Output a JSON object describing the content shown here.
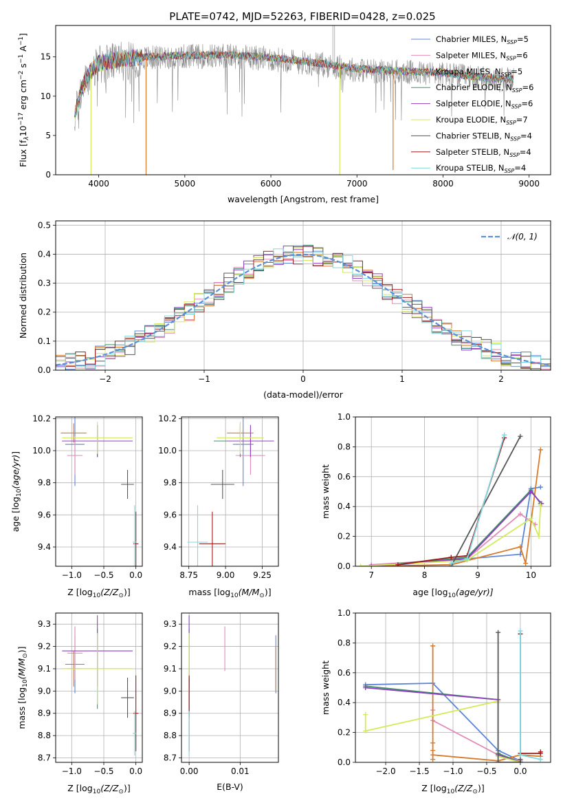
{
  "figure": {
    "title": "PLATE=0742, MJD=52263, FIBERID=0428, z=0.025"
  },
  "colors": {
    "Chabrier MILES": "#5b84d8",
    "Salpeter MILES": "#e08bb8",
    "Kroupa MILES": "#d97a2b",
    "Chabrier ELODIE": "#3e8f6a",
    "Salpeter ELODIE": "#8e3fbd",
    "Kroupa ELODIE": "#d4ea5a",
    "Chabrier STELIB": "#555555",
    "Salpeter STELIB": "#9b1b1b",
    "Kroupa STELIB": "#7fd8e0",
    "data": "#888888",
    "gaussian": "#5b8fd6"
  },
  "chart_data": [
    {
      "id": "spectrum",
      "type": "line",
      "xlabel": "wavelength [Angstrom, rest frame]",
      "ylabel": "Flux [f$_\\lambda$10$^{-17}$ erg cm$^{-2}$ s$^{-1}$ A$^{-1}$]",
      "xlim": [
        3500,
        9250
      ],
      "ylim": [
        0,
        19
      ],
      "xticks": [
        4000,
        5000,
        6000,
        7000,
        8000,
        9000
      ],
      "yticks": [
        0,
        5,
        10,
        15
      ],
      "legend_position": "top-right",
      "legend": [
        {
          "name": "Chabrier MILES",
          "main": "Chabrier MILES, N",
          "sub": "SSP",
          "tail": "=5"
        },
        {
          "name": "Salpeter MILES",
          "main": "Salpeter MILES, N",
          "sub": "SSP",
          "tail": "=6"
        },
        {
          "name": "Kroupa MILES",
          "main": "Kroupa MILES, N",
          "sub": "SSP",
          "tail": "=5"
        },
        {
          "name": "Chabrier ELODIE",
          "main": "Chabrier ELODIE, N",
          "sub": "SSP",
          "tail": "=6"
        },
        {
          "name": "Salpeter ELODIE",
          "main": "Salpeter ELODIE, N",
          "sub": "SSP",
          "tail": "=6"
        },
        {
          "name": "Kroupa ELODIE",
          "main": "Kroupa ELODIE, N",
          "sub": "SSP",
          "tail": "=7"
        },
        {
          "name": "Chabrier STELIB",
          "main": "Chabrier STELIB, N",
          "sub": "SSP",
          "tail": "=4"
        },
        {
          "name": "Salpeter STELIB",
          "main": "Salpeter STELIB, N",
          "sub": "SSP",
          "tail": "=4"
        },
        {
          "name": "Kroupa STELIB",
          "main": "Kroupa STELIB, N",
          "sub": "SSP",
          "tail": "=4"
        }
      ],
      "continuum": [
        [
          3720,
          7.5
        ],
        [
          3800,
          11.0
        ],
        [
          3900,
          13.0
        ],
        [
          4000,
          14.2
        ],
        [
          4200,
          14.6
        ],
        [
          4500,
          15.0
        ],
        [
          5000,
          15.2
        ],
        [
          5500,
          15.3
        ],
        [
          6000,
          14.9
        ],
        [
          6500,
          14.3
        ],
        [
          7000,
          13.5
        ],
        [
          7500,
          13.2
        ],
        [
          8000,
          13.0
        ],
        [
          8500,
          12.3
        ],
        [
          8820,
          12.2
        ]
      ],
      "noise_amplitude_data": 2.5,
      "noise_amplitude_models": 1.0,
      "model_drops": [
        {
          "x": 3910,
          "y": 0.0,
          "model": "Kroupa ELODIE"
        },
        {
          "x": 4550,
          "y": 0.0,
          "model": "Kroupa MILES"
        },
        {
          "x": 6800,
          "y": 0.0,
          "model": "Kroupa ELODIE"
        },
        {
          "x": 7420,
          "y": 0.6,
          "model": "Kroupa MILES"
        }
      ],
      "data_spikes": [
        {
          "x": 6720,
          "y": 19.0
        },
        {
          "x": 6740,
          "y": 19.0
        }
      ]
    },
    {
      "id": "residuals",
      "type": "line",
      "xlabel": "(data-model)/error",
      "ylabel": "Normed distribution",
      "xlim": [
        -2.5,
        2.5
      ],
      "ylim": [
        0,
        0.515
      ],
      "xticks": [
        -2,
        -1,
        0,
        1,
        2
      ],
      "yticks": [
        0.0,
        0.1,
        0.2,
        0.3,
        0.4,
        0.5
      ],
      "grid": true,
      "legend_position": "top-right",
      "legend_label": "𝒩(0, 1)",
      "bin_width": 0.1,
      "bin_start": -2.5,
      "histogram_scatter": 0.035
    },
    {
      "id": "age_vs_Z",
      "type": "scatter",
      "xlabel_main": "Z [log",
      "xlabel_sub": "10",
      "xlabel_tail": "(Z/Z",
      "xlabel_end": ")]",
      "ylabel": "age  [log10(age/yr)]",
      "xlim": [
        -1.25,
        0.1
      ],
      "ylim": [
        9.28,
        10.21
      ],
      "xticks": [
        -1.0,
        -0.5,
        0.0
      ],
      "yticks": [
        9.4,
        9.6,
        9.8,
        10.0,
        10.2
      ],
      "grid": true,
      "points": [
        {
          "model": "Chabrier MILES",
          "x": -0.95,
          "xerr": 0.15,
          "y": 10.04,
          "yerr": 0.26
        },
        {
          "model": "Salpeter MILES",
          "x": -0.95,
          "xerr": 0.12,
          "y": 9.97,
          "yerr": 0.12
        },
        {
          "model": "Kroupa MILES",
          "x": -0.97,
          "xerr": 0.2,
          "y": 10.11,
          "yerr": 0.06
        },
        {
          "model": "Chabrier ELODIE",
          "x": -0.6,
          "xerr": 0.55,
          "y": 10.06,
          "yerr": 0.1
        },
        {
          "model": "Salpeter ELODIE",
          "x": -0.6,
          "xerr": 0.55,
          "y": 10.06,
          "yerr": 0.1
        },
        {
          "model": "Kroupa ELODIE",
          "x": -0.6,
          "xerr": 0.55,
          "y": 10.08,
          "yerr": 0.1
        },
        {
          "model": "Chabrier STELIB",
          "x": -0.13,
          "xerr": 0.1,
          "y": 9.79,
          "yerr": 0.09
        },
        {
          "model": "Salpeter STELIB",
          "x": 0.0,
          "xerr": 0.04,
          "y": 9.42,
          "yerr": 0.2
        },
        {
          "model": "Kroupa STELIB",
          "x": -0.02,
          "xerr": 0.03,
          "y": 9.43,
          "yerr": 0.23
        }
      ]
    },
    {
      "id": "age_vs_mass",
      "type": "scatter",
      "xlabel_main": "mass [log",
      "xlabel_sub": "10",
      "xlabel_tail": "(M/M",
      "xlabel_end": ")]",
      "ylabel": "",
      "xlim": [
        8.7,
        9.36
      ],
      "ylim": [
        9.28,
        10.21
      ],
      "xticks": [
        8.75,
        9.0,
        9.25
      ],
      "yticks": [
        9.4,
        9.6,
        9.8,
        10.0,
        10.2
      ],
      "grid": true,
      "points": [
        {
          "model": "Chabrier MILES",
          "x": 9.12,
          "xerr": 0.07,
          "y": 10.04,
          "yerr": 0.26
        },
        {
          "model": "Salpeter MILES",
          "x": 9.17,
          "xerr": 0.1,
          "y": 9.97,
          "yerr": 0.12
        },
        {
          "model": "Kroupa MILES",
          "x": 9.1,
          "xerr": 0.09,
          "y": 10.11,
          "yerr": 0.06
        },
        {
          "model": "Chabrier ELODIE",
          "x": 9.1,
          "xerr": 0.18,
          "y": 10.06,
          "yerr": 0.1
        },
        {
          "model": "Salpeter ELODIE",
          "x": 9.17,
          "xerr": 0.16,
          "y": 10.06,
          "yerr": 0.1
        },
        {
          "model": "Kroupa ELODIE",
          "x": 9.1,
          "xerr": 0.16,
          "y": 10.08,
          "yerr": 0.1
        },
        {
          "model": "Chabrier STELIB",
          "x": 8.98,
          "xerr": 0.08,
          "y": 9.79,
          "yerr": 0.09
        },
        {
          "model": "Salpeter STELIB",
          "x": 8.91,
          "xerr": 0.09,
          "y": 9.42,
          "yerr": 0.2
        },
        {
          "model": "Kroupa STELIB",
          "x": 8.81,
          "xerr": 0.07,
          "y": 9.43,
          "yerr": 0.23
        }
      ]
    },
    {
      "id": "weight_vs_age",
      "type": "line",
      "xlabel_main": "age  [log",
      "xlabel_sub": "10",
      "xlabel_tail": "(age/yr)]",
      "ylabel": "mass weight",
      "xlim": [
        6.7,
        10.37
      ],
      "ylim": [
        0,
        1.0
      ],
      "xticks": [
        7,
        8,
        9,
        10
      ],
      "yticks": [
        0.0,
        0.2,
        0.4,
        0.6,
        0.8,
        1.0
      ],
      "grid": true,
      "series": [
        {
          "model": "Chabrier MILES",
          "x": [
            7.5,
            9.8,
            10.0,
            10.18
          ],
          "y": [
            0.01,
            0.08,
            0.52,
            0.53
          ]
        },
        {
          "model": "Salpeter MILES",
          "x": [
            7.0,
            8.8,
            9.8,
            10.08
          ],
          "y": [
            0.01,
            0.05,
            0.35,
            0.28
          ]
        },
        {
          "model": "Kroupa MILES",
          "x": [
            7.0,
            8.5,
            9.8,
            9.9,
            10.18
          ],
          "y": [
            0.0,
            0.01,
            0.13,
            0.02,
            0.78
          ]
        },
        {
          "model": "Chabrier ELODIE",
          "x": [
            7.0,
            8.8,
            10.0,
            10.18
          ],
          "y": [
            0.0,
            0.06,
            0.51,
            0.42
          ]
        },
        {
          "model": "Salpeter ELODIE",
          "x": [
            7.0,
            8.8,
            10.0,
            10.2
          ],
          "y": [
            0.0,
            0.05,
            0.5,
            0.42
          ]
        },
        {
          "model": "Kroupa ELODIE",
          "x": [
            6.8,
            8.8,
            10.0,
            10.15,
            10.18
          ],
          "y": [
            0.0,
            0.04,
            0.32,
            0.2,
            0.41
          ]
        },
        {
          "model": "Chabrier STELIB",
          "x": [
            8.5,
            9.8
          ],
          "y": [
            0.0,
            0.87
          ]
        },
        {
          "model": "Salpeter STELIB",
          "x": [
            7.5,
            8.5,
            8.8,
            9.5
          ],
          "y": [
            0.01,
            0.06,
            0.07,
            0.86
          ]
        },
        {
          "model": "Kroupa STELIB",
          "x": [
            8.5,
            8.8,
            9.5
          ],
          "y": [
            0.02,
            0.05,
            0.88
          ]
        }
      ]
    },
    {
      "id": "mass_vs_Z",
      "type": "scatter",
      "xlabel_main": "Z [log",
      "xlabel_sub": "10",
      "xlabel_tail": "(Z/Z",
      "xlabel_end": ")]",
      "ylabel": "mass [log10(M/M⊙)]",
      "xlim": [
        -1.25,
        0.1
      ],
      "ylim": [
        8.68,
        9.35
      ],
      "xticks": [
        -1.0,
        -0.5,
        0.0
      ],
      "yticks": [
        8.7,
        8.8,
        8.9,
        9.0,
        9.1,
        9.2,
        9.3
      ],
      "grid": true,
      "points": [
        {
          "model": "Chabrier MILES",
          "x": -0.95,
          "xerr": 0.15,
          "y": 9.12,
          "yerr": 0.13
        },
        {
          "model": "Salpeter MILES",
          "x": -0.95,
          "xerr": 0.12,
          "y": 9.17,
          "yerr": 0.12
        },
        {
          "model": "Kroupa MILES",
          "x": -0.97,
          "xerr": 0.1,
          "y": 9.1,
          "yerr": 0.08
        },
        {
          "model": "Chabrier ELODIE",
          "x": -0.6,
          "xerr": 0.55,
          "y": 9.1,
          "yerr": 0.18
        },
        {
          "model": "Salpeter ELODIE",
          "x": -0.6,
          "xerr": 0.55,
          "y": 9.18,
          "yerr": 0.16
        },
        {
          "model": "Kroupa ELODIE",
          "x": -0.6,
          "xerr": 0.55,
          "y": 9.1,
          "yerr": 0.16
        },
        {
          "model": "Chabrier STELIB",
          "x": -0.13,
          "xerr": 0.1,
          "y": 8.97,
          "yerr": 0.09
        },
        {
          "model": "Salpeter STELIB",
          "x": 0.0,
          "xerr": 0.04,
          "y": 8.9,
          "yerr": 0.17
        },
        {
          "model": "Kroupa STELIB",
          "x": -0.02,
          "xerr": 0.03,
          "y": 8.81,
          "yerr": 0.1
        }
      ]
    },
    {
      "id": "mass_vs_EBV",
      "type": "scatter",
      "xlabel": "E(B-V)",
      "ylabel": "",
      "xlim": [
        -0.0015,
        0.0175
      ],
      "ylim": [
        8.68,
        9.35
      ],
      "xticks": [
        0.0,
        0.01
      ],
      "xtick_labels": [
        "0.00",
        "0.01"
      ],
      "yticks": [
        8.7,
        8.8,
        8.9,
        9.0,
        9.1,
        9.2,
        9.3
      ],
      "grid": true,
      "points": [
        {
          "model": "Chabrier MILES",
          "x": 0.017,
          "xerr": 0.0,
          "y": 9.12,
          "yerr": 0.13
        },
        {
          "model": "Salpeter MILES",
          "x": 0.007,
          "xerr": 0.0,
          "y": 9.19,
          "yerr": 0.1
        },
        {
          "model": "Kroupa MILES",
          "x": 0.017,
          "xerr": 0.0,
          "y": 9.1,
          "yerr": 0.1
        },
        {
          "model": "Chabrier ELODIE",
          "x": 0.0,
          "xerr": 0.0,
          "y": 9.1,
          "yerr": 0.18
        },
        {
          "model": "Salpeter ELODIE",
          "x": 0.0,
          "xerr": 0.0,
          "y": 9.18,
          "yerr": 0.16
        },
        {
          "model": "Kroupa ELODIE",
          "x": 0.0,
          "xerr": 0.0,
          "y": 9.1,
          "yerr": 0.16
        },
        {
          "model": "Chabrier STELIB",
          "x": 0.0,
          "xerr": 0.0,
          "y": 8.97,
          "yerr": 0.09
        },
        {
          "model": "Salpeter STELIB",
          "x": 0.0,
          "xerr": 0.0,
          "y": 8.9,
          "yerr": 0.17
        },
        {
          "model": "Kroupa STELIB",
          "x": 0.0,
          "xerr": 0.0,
          "y": 8.81,
          "yerr": 0.1
        }
      ]
    },
    {
      "id": "weight_vs_Z",
      "type": "line",
      "xlabel_main": "Z [log",
      "xlabel_sub": "10",
      "xlabel_tail": "(Z/Z",
      "xlabel_end": ")]",
      "ylabel": "mass weight",
      "xlim": [
        -2.45,
        0.45
      ],
      "ylim": [
        0,
        1.0
      ],
      "xticks": [
        -2.0,
        -1.5,
        -1.0,
        -0.5,
        0.0
      ],
      "yticks": [
        0.0,
        0.2,
        0.4,
        0.6,
        0.8,
        1.0
      ],
      "grid": true,
      "series": [
        {
          "model": "Chabrier MILES",
          "x": [
            -2.3,
            -1.3,
            -0.33,
            0.0
          ],
          "y": [
            0.52,
            0.53,
            0.08,
            0.01
          ]
        },
        {
          "model": "Salpeter MILES",
          "x": [
            -1.3,
            -1.3,
            -0.33,
            0.0
          ],
          "y": [
            0.35,
            0.28,
            0.05,
            0.01
          ]
        },
        {
          "model": "Kroupa MILES",
          "x": [
            -1.3,
            -1.3,
            -1.3,
            -1.3,
            -1.3,
            -0.33,
            0.0,
            0.3
          ],
          "y": [
            0.78,
            0.13,
            0.02,
            0.08,
            0.05,
            0.01,
            0.05,
            0.04
          ]
        },
        {
          "model": "Chabrier ELODIE",
          "x": [
            -2.3,
            -0.33,
            -0.33,
            0.0
          ],
          "y": [
            0.51,
            0.42,
            0.06,
            0.0
          ]
        },
        {
          "model": "Salpeter ELODIE",
          "x": [
            -2.3,
            -0.33,
            -0.33,
            0.0
          ],
          "y": [
            0.5,
            0.42,
            0.05,
            0.0
          ]
        },
        {
          "model": "Kroupa ELODIE",
          "x": [
            -2.3,
            -2.3,
            -0.33,
            -0.33,
            0.0
          ],
          "y": [
            0.32,
            0.21,
            0.41,
            0.04,
            0.0
          ]
        },
        {
          "model": "Chabrier STELIB",
          "x": [
            -0.33,
            -0.33,
            0.0,
            0.0
          ],
          "y": [
            0.87,
            0.0,
            0.0,
            0.02
          ]
        },
        {
          "model": "Salpeter STELIB",
          "x": [
            0.0,
            0.0,
            0.3,
            0.3
          ],
          "y": [
            0.86,
            0.06,
            0.06,
            0.07
          ]
        },
        {
          "model": "Kroupa STELIB",
          "x": [
            0.0,
            0.0,
            0.3
          ],
          "y": [
            0.88,
            0.05,
            0.02
          ]
        }
      ]
    }
  ]
}
